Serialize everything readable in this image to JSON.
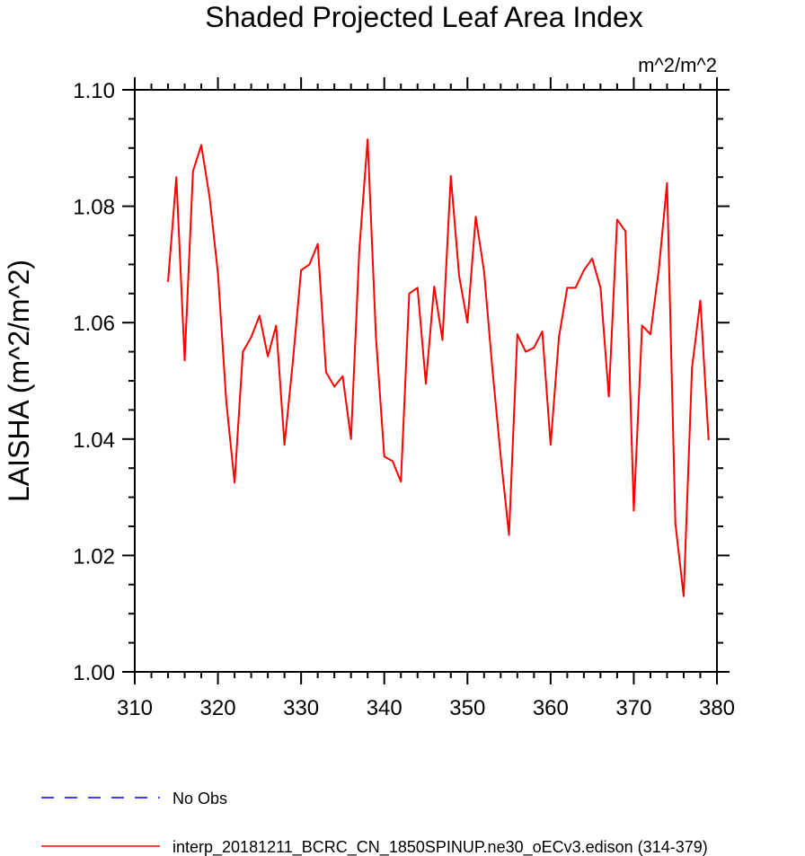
{
  "chart_data": {
    "type": "line",
    "title": "Shaded Projected Leaf Area Index",
    "units_label": "m^2/m^2",
    "ylabel": "LAISHA  (m^2/m^2)",
    "xlabel": "",
    "xlim": [
      310,
      380
    ],
    "ylim": [
      1.0,
      1.1
    ],
    "x_ticks": [
      "310",
      "320",
      "330",
      "340",
      "350",
      "360",
      "370",
      "380"
    ],
    "y_ticks": [
      "1.00",
      "1.02",
      "1.04",
      "1.06",
      "1.08",
      "1.10"
    ],
    "grid": false,
    "series": [
      {
        "name": "interp_20181211_BCRC_CN_1850SPINUP.ne30_oECv3.edison (314-379)",
        "color": "#ff0000",
        "x": [
          314,
          315,
          316,
          317,
          318,
          319,
          320,
          321,
          322,
          323,
          324,
          325,
          326,
          327,
          328,
          329,
          330,
          331,
          332,
          333,
          334,
          335,
          336,
          337,
          338,
          339,
          340,
          341,
          342,
          343,
          344,
          345,
          346,
          347,
          348,
          349,
          350,
          351,
          352,
          353,
          354,
          355,
          356,
          357,
          358,
          359,
          360,
          361,
          362,
          363,
          364,
          365,
          366,
          367,
          368,
          369,
          370,
          371,
          372,
          373,
          374,
          375,
          376,
          377,
          378,
          379
        ],
        "y": [
          1.067,
          1.085,
          1.0535,
          1.086,
          1.0905,
          1.0815,
          1.0685,
          1.0465,
          1.0325,
          1.055,
          1.0575,
          1.0612,
          1.0542,
          1.0595,
          1.039,
          1.0532,
          1.069,
          1.07,
          1.0735,
          1.0515,
          1.049,
          1.0508,
          1.04,
          1.0725,
          1.0915,
          1.0575,
          1.037,
          1.0362,
          1.0327,
          1.065,
          1.066,
          1.0495,
          1.0662,
          1.057,
          1.0852,
          1.068,
          1.06,
          1.0782,
          1.0688,
          1.052,
          1.037,
          1.0235,
          1.058,
          1.055,
          1.0557,
          1.0585,
          1.039,
          1.0575,
          1.066,
          1.066,
          1.069,
          1.071,
          1.066,
          1.0473,
          1.0777,
          1.0757,
          1.0277,
          1.0595,
          1.058,
          1.069,
          1.084,
          1.0255,
          1.013,
          1.0522,
          1.0638,
          1.0398
        ]
      }
    ],
    "legend": [
      {
        "label": "No Obs",
        "color": "#0000ff",
        "style": "dashed"
      },
      {
        "label": "interp_20181211_BCRC_CN_1850SPINUP.ne30_oECv3.edison (314-379)",
        "color": "#ff0000",
        "style": "solid"
      }
    ],
    "legend_position": "bottom-left"
  }
}
